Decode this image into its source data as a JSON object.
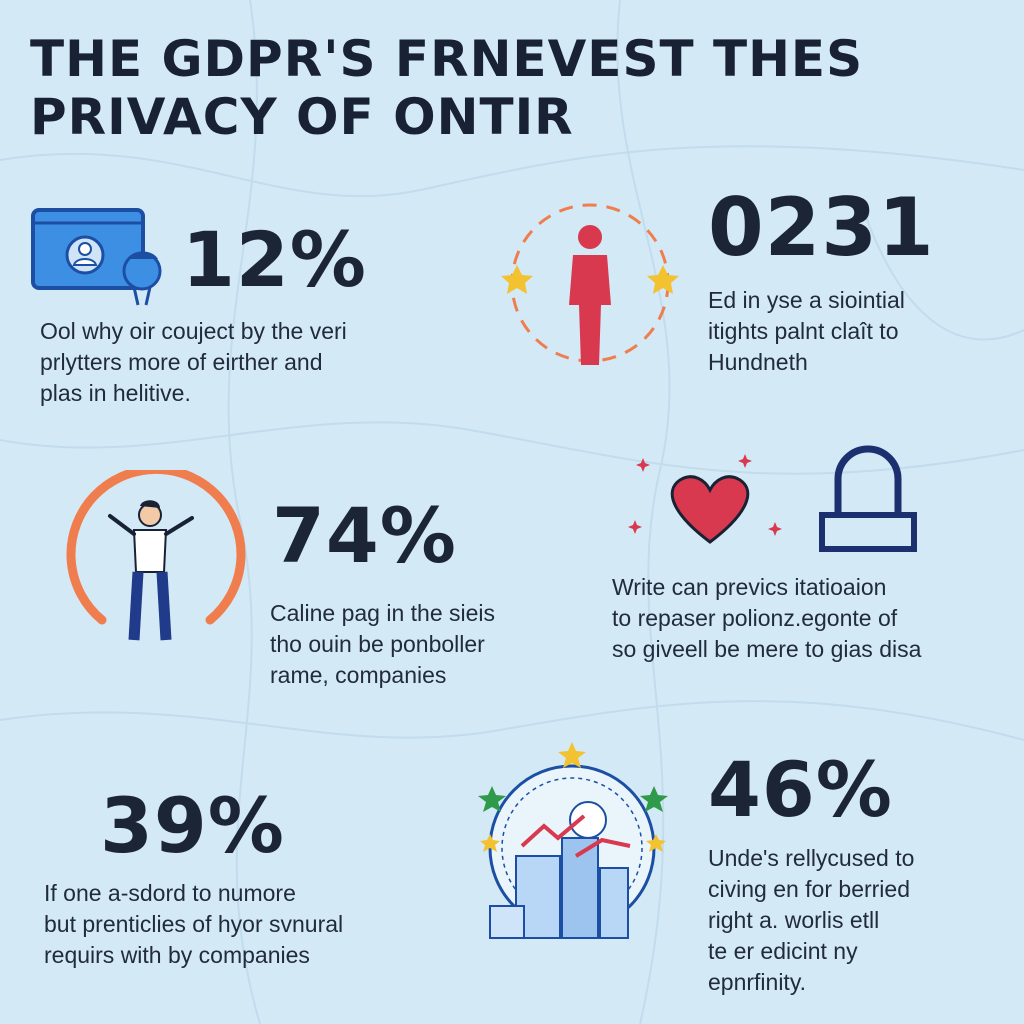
{
  "title": [
    "THE GDPR'S FRNEVEST THES",
    "PRIVACY OF ONTIR"
  ],
  "stats": [
    {
      "value": "12%",
      "lines": [
        "Ool why oir couject by the veri",
        "prlytters more of eirther and",
        "plas in helitive."
      ]
    },
    {
      "value": "0231",
      "lines": [
        "Ed in yse a siointial",
        "itights palnt claît to",
        "Hundneth"
      ]
    },
    {
      "value": "74%",
      "lines": [
        "Caline pag in the sieis",
        "tho ouin be ponboller",
        "rame, companies"
      ]
    },
    {
      "value": "",
      "lines": [
        "Write can prevics itatioaion",
        "to repaser polionz.egonte of",
        "so giveell be mere to gias disa"
      ]
    },
    {
      "value": "39%",
      "lines": [
        "If one a-sdord to numore",
        "but prenticlies of hyor svnural",
        "requirs with by companies"
      ]
    },
    {
      "value": "46%",
      "lines": [
        "Unde's rellycused to",
        "civing en for berried",
        "right a. worlis etll",
        "te er edicint ny",
        "epnrfinity."
      ]
    }
  ],
  "icons": [
    "browser-profile-icon",
    "person-stars-icon",
    "person-arms-up-icon",
    "heart-icon",
    "lock-shackle-icon",
    "city-growth-stars-icon"
  ],
  "colors": {
    "background": "#d3e9f6",
    "navy": "#182234",
    "blue": "#2a7bd8",
    "red": "#d8394f",
    "orange": "#f07d4e",
    "gold": "#f2c230",
    "green": "#2f9a4a"
  }
}
